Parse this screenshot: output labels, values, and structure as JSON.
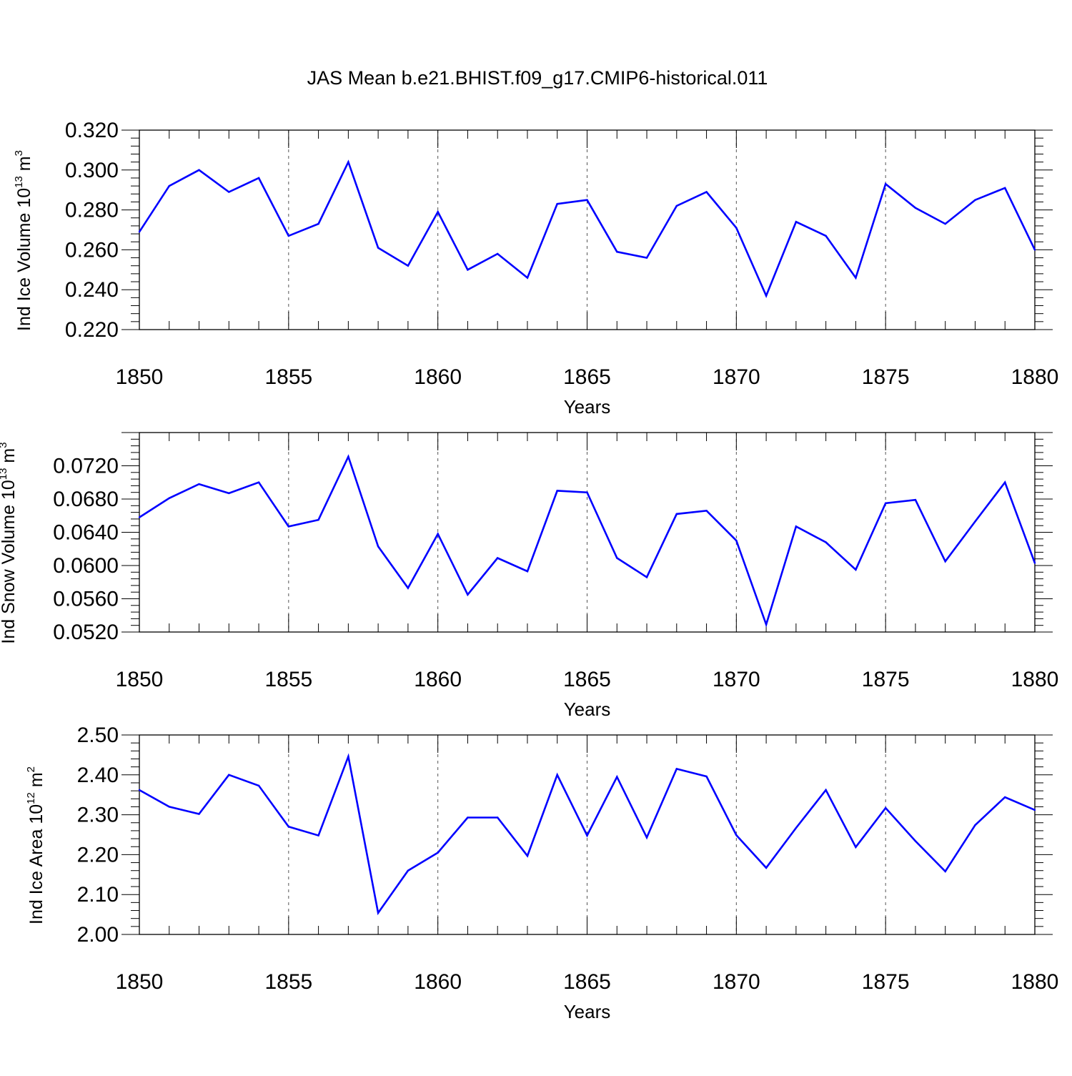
{
  "chart_data": {
    "title": "JAS Mean b.e21.BHIST.f09_g17.CMIP6-historical.011",
    "panels": [
      {
        "type": "line",
        "ylabel": {
          "prefix": "Ind Ice Volume 10",
          "exp": "13",
          "unit": " m",
          "unit_exp": "3"
        },
        "xlabel": "Years",
        "xlim": [
          1850,
          1880
        ],
        "ylim": [
          0.22,
          0.32
        ],
        "yticks": [
          "0.220",
          "0.240",
          "0.260",
          "0.280",
          "0.300",
          "0.320"
        ],
        "xticks": [
          "1850",
          "1855",
          "1860",
          "1865",
          "1870",
          "1875",
          "1880"
        ],
        "color": "#0000ff",
        "x": [
          1850,
          1851,
          1852,
          1853,
          1854,
          1855,
          1856,
          1857,
          1858,
          1859,
          1860,
          1861,
          1862,
          1863,
          1864,
          1865,
          1866,
          1867,
          1868,
          1869,
          1870,
          1871,
          1872,
          1873,
          1874,
          1875,
          1876,
          1877,
          1878,
          1879,
          1880
        ],
        "values": [
          0.269,
          0.292,
          0.3,
          0.289,
          0.296,
          0.267,
          0.273,
          0.304,
          0.261,
          0.252,
          0.279,
          0.25,
          0.258,
          0.246,
          0.283,
          0.285,
          0.259,
          0.256,
          0.282,
          0.289,
          0.271,
          0.237,
          0.274,
          0.267,
          0.246,
          0.293,
          0.281,
          0.273,
          0.285,
          0.291,
          0.26
        ]
      },
      {
        "type": "line",
        "ylabel": {
          "prefix": "Ind Snow Volume 10",
          "exp": "13",
          "unit": " m",
          "unit_exp": "3"
        },
        "xlabel": "Years",
        "xlim": [
          1850,
          1880
        ],
        "ylim": [
          0.052,
          0.076
        ],
        "yticks": [
          "0.0520",
          "0.0560",
          "0.0600",
          "0.0640",
          "0.0680",
          "0.0720"
        ],
        "xticks": [
          "1850",
          "1855",
          "1860",
          "1865",
          "1870",
          "1875",
          "1880"
        ],
        "color": "#0000ff",
        "x": [
          1850,
          1851,
          1852,
          1853,
          1854,
          1855,
          1856,
          1857,
          1858,
          1859,
          1860,
          1861,
          1862,
          1863,
          1864,
          1865,
          1866,
          1867,
          1868,
          1869,
          1870,
          1871,
          1872,
          1873,
          1874,
          1875,
          1876,
          1877,
          1878,
          1879,
          1880
        ],
        "values": [
          0.0658,
          0.0681,
          0.0698,
          0.0687,
          0.07,
          0.0647,
          0.0655,
          0.0731,
          0.0623,
          0.0573,
          0.0638,
          0.0565,
          0.0609,
          0.0593,
          0.069,
          0.0688,
          0.0609,
          0.0586,
          0.0662,
          0.0666,
          0.063,
          0.0529,
          0.0647,
          0.0628,
          0.0595,
          0.0675,
          0.0679,
          0.0605,
          0.0653,
          0.07,
          0.0603
        ]
      },
      {
        "type": "line",
        "ylabel": {
          "prefix": "Ind Ice Area 10",
          "exp": "12",
          "unit": " m",
          "unit_exp": "2"
        },
        "xlabel": "Years",
        "xlim": [
          1850,
          1880
        ],
        "ylim": [
          2.0,
          2.5
        ],
        "yticks": [
          "2.00",
          "2.10",
          "2.20",
          "2.30",
          "2.40",
          "2.50"
        ],
        "xticks": [
          "1850",
          "1855",
          "1860",
          "1865",
          "1870",
          "1875",
          "1880"
        ],
        "color": "#0000ff",
        "x": [
          1850,
          1851,
          1852,
          1853,
          1854,
          1855,
          1856,
          1857,
          1858,
          1859,
          1860,
          1861,
          1862,
          1863,
          1864,
          1865,
          1866,
          1867,
          1868,
          1869,
          1870,
          1871,
          1872,
          1873,
          1874,
          1875,
          1876,
          1877,
          1878,
          1879,
          1880
        ],
        "values": [
          2.362,
          2.32,
          2.302,
          2.4,
          2.373,
          2.27,
          2.248,
          2.446,
          2.054,
          2.16,
          2.205,
          2.293,
          2.293,
          2.197,
          2.4,
          2.248,
          2.395,
          2.243,
          2.415,
          2.396,
          2.249,
          2.167,
          2.267,
          2.362,
          2.219,
          2.317,
          2.234,
          2.158,
          2.274,
          2.344,
          2.312
        ]
      }
    ]
  }
}
